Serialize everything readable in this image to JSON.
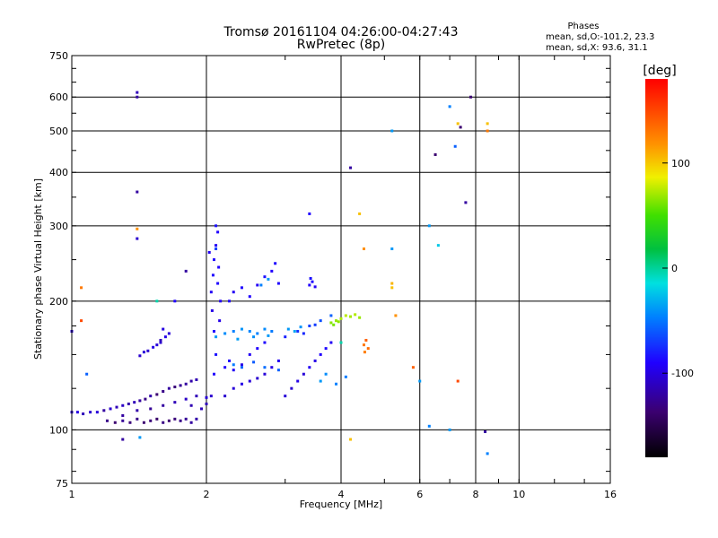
{
  "chart_data": {
    "type": "scatter",
    "title": "Tromsø 20161104 04:26:00-04:27:43",
    "subtitle": "RwPretec (8p)",
    "xlabel": "Frequency [MHz]",
    "ylabel": "Stationary phase Virtual Height [km]",
    "x_scale": "log",
    "y_scale": "log",
    "xlim": [
      1,
      16
    ],
    "ylim": [
      75,
      750
    ],
    "x_ticks": [
      1,
      2,
      4,
      6,
      8,
      10,
      16
    ],
    "x_tick_labels": [
      "1",
      "2",
      "4",
      "6",
      "8",
      "10",
      "16"
    ],
    "y_ticks": [
      75,
      100,
      200,
      300,
      400,
      500,
      600,
      750
    ],
    "y_tick_labels": [
      "75",
      "100",
      "200",
      "300",
      "400",
      "500",
      "600",
      "750"
    ],
    "grid": true,
    "phases_legend": {
      "title": "Phases",
      "line_o": "mean, sd,O:-101.2, 23.3",
      "line_x": "mean, sd,X:  93.6, 31.1"
    },
    "colorbar": {
      "label": "[deg]",
      "ticks": [
        100,
        0,
        -100
      ],
      "tick_labels": [
        "100",
        "0",
        "-100"
      ],
      "range": [
        -180,
        180
      ]
    },
    "points": [
      [
        1.0,
        110,
        -120
      ],
      [
        1.03,
        110,
        -115
      ],
      [
        1.06,
        109,
        -125
      ],
      [
        1.1,
        110,
        -120
      ],
      [
        1.14,
        110,
        -118
      ],
      [
        1.18,
        111,
        -130
      ],
      [
        1.22,
        112,
        -120
      ],
      [
        1.26,
        113,
        -125
      ],
      [
        1.3,
        114,
        -122
      ],
      [
        1.34,
        115,
        -128
      ],
      [
        1.38,
        116,
        -125
      ],
      [
        1.42,
        117,
        -130
      ],
      [
        1.46,
        118,
        -135
      ],
      [
        1.5,
        120,
        -128
      ],
      [
        1.55,
        121,
        -140
      ],
      [
        1.6,
        123,
        -135
      ],
      [
        1.65,
        125,
        -130
      ],
      [
        1.7,
        126,
        -138
      ],
      [
        1.75,
        127,
        -132
      ],
      [
        1.8,
        128,
        -130
      ],
      [
        1.85,
        130,
        -128
      ],
      [
        1.9,
        131,
        -126
      ],
      [
        1.2,
        105,
        -135
      ],
      [
        1.25,
        104,
        -140
      ],
      [
        1.3,
        105,
        -132
      ],
      [
        1.35,
        104,
        -138
      ],
      [
        1.4,
        106,
        -135
      ],
      [
        1.45,
        104,
        -140
      ],
      [
        1.5,
        105,
        -138
      ],
      [
        1.55,
        106,
        -142
      ],
      [
        1.6,
        104,
        -136
      ],
      [
        1.65,
        105,
        -140
      ],
      [
        1.7,
        106,
        -138
      ],
      [
        1.75,
        105,
        -135
      ],
      [
        1.8,
        106,
        -132
      ],
      [
        1.85,
        104,
        -130
      ],
      [
        1.9,
        106,
        -128
      ],
      [
        1.3,
        108,
        -130
      ],
      [
        1.4,
        111,
        -128
      ],
      [
        1.5,
        112,
        -132
      ],
      [
        1.6,
        114,
        -130
      ],
      [
        1.7,
        116,
        -125
      ],
      [
        1.8,
        118,
        -122
      ],
      [
        1.9,
        120,
        -125
      ],
      [
        2.0,
        119,
        -118
      ],
      [
        1.95,
        112,
        -124
      ],
      [
        1.85,
        114,
        -126
      ],
      [
        1.42,
        149,
        -120
      ],
      [
        1.45,
        152,
        -118
      ],
      [
        1.48,
        153,
        -120
      ],
      [
        1.52,
        156,
        -115
      ],
      [
        1.55,
        158,
        -118
      ],
      [
        1.58,
        160,
        -120
      ],
      [
        1.62,
        165,
        -115
      ],
      [
        1.65,
        168,
        -118
      ],
      [
        1.6,
        172,
        -116
      ],
      [
        1.58,
        162,
        -124
      ],
      [
        2.0,
        115,
        -125
      ],
      [
        2.05,
        120,
        -120
      ],
      [
        2.08,
        135,
        -110
      ],
      [
        2.1,
        150,
        -105
      ],
      [
        2.08,
        170,
        -110
      ],
      [
        2.06,
        190,
        -115
      ],
      [
        2.05,
        210,
        -112
      ],
      [
        2.07,
        230,
        -108
      ],
      [
        2.08,
        250,
        -110
      ],
      [
        2.1,
        270,
        -112
      ],
      [
        2.12,
        290,
        -110
      ],
      [
        2.1,
        300,
        -105
      ],
      [
        2.15,
        200,
        -112
      ],
      [
        2.12,
        220,
        -108
      ],
      [
        2.13,
        240,
        -110
      ],
      [
        2.14,
        180,
        -115
      ],
      [
        2.03,
        260,
        -112
      ],
      [
        2.2,
        140,
        -110
      ],
      [
        2.25,
        145,
        -108
      ],
      [
        2.3,
        138,
        -112
      ],
      [
        2.4,
        142,
        -115
      ],
      [
        2.5,
        150,
        -112
      ],
      [
        2.6,
        155,
        -110
      ],
      [
        2.7,
        160,
        -108
      ],
      [
        2.2,
        120,
        -120
      ],
      [
        2.3,
        125,
        -118
      ],
      [
        2.4,
        128,
        -115
      ],
      [
        2.5,
        130,
        -118
      ],
      [
        2.6,
        132,
        -120
      ],
      [
        2.7,
        135,
        -118
      ],
      [
        2.8,
        140,
        -115
      ],
      [
        2.9,
        145,
        -112
      ],
      [
        2.1,
        165,
        -60
      ],
      [
        2.2,
        168,
        -65
      ],
      [
        2.3,
        170,
        -70
      ],
      [
        2.4,
        172,
        -62
      ],
      [
        2.5,
        170,
        -68
      ],
      [
        2.6,
        168,
        -70
      ],
      [
        2.7,
        172,
        -66
      ],
      [
        2.8,
        170,
        -72
      ],
      [
        2.35,
        163,
        -58
      ],
      [
        2.55,
        165,
        -64
      ],
      [
        2.75,
        166,
        -60
      ],
      [
        2.3,
        142,
        -72
      ],
      [
        2.4,
        140,
        -78
      ],
      [
        2.55,
        144,
        -82
      ],
      [
        2.7,
        140,
        -76
      ],
      [
        2.9,
        138,
        -80
      ],
      [
        2.25,
        200,
        -110
      ],
      [
        2.3,
        210,
        -112
      ],
      [
        2.4,
        215,
        -108
      ],
      [
        2.5,
        205,
        -110
      ],
      [
        2.6,
        218,
        -112
      ],
      [
        2.7,
        228,
        -105
      ],
      [
        2.8,
        235,
        -110
      ],
      [
        2.85,
        245,
        -108
      ],
      [
        2.75,
        225,
        -60
      ],
      [
        2.65,
        218,
        -70
      ],
      [
        2.9,
        220,
        -108
      ],
      [
        3.0,
        120,
        -118
      ],
      [
        3.1,
        125,
        -120
      ],
      [
        3.2,
        130,
        -115
      ],
      [
        3.3,
        135,
        -118
      ],
      [
        3.4,
        140,
        -112
      ],
      [
        3.5,
        145,
        -115
      ],
      [
        3.6,
        150,
        -110
      ],
      [
        3.7,
        155,
        -108
      ],
      [
        3.8,
        160,
        -112
      ],
      [
        3.0,
        165,
        -100
      ],
      [
        3.2,
        170,
        -95
      ],
      [
        3.4,
        175,
        -90
      ],
      [
        3.6,
        180,
        -85
      ],
      [
        3.3,
        168,
        -98
      ],
      [
        3.5,
        176,
        -92
      ],
      [
        3.8,
        185,
        -80
      ],
      [
        3.05,
        172,
        -60
      ],
      [
        3.15,
        170,
        -55
      ],
      [
        3.25,
        174,
        -62
      ],
      [
        3.4,
        218,
        -110
      ],
      [
        3.45,
        222,
        -108
      ],
      [
        3.5,
        216,
        -112
      ],
      [
        3.42,
        226,
        -105
      ],
      [
        3.8,
        178,
        50
      ],
      [
        3.9,
        180,
        55
      ],
      [
        4.0,
        182,
        60
      ],
      [
        4.1,
        185,
        65
      ],
      [
        4.2,
        184,
        58
      ],
      [
        4.3,
        186,
        62
      ],
      [
        4.4,
        183,
        55
      ],
      [
        3.85,
        176,
        45
      ],
      [
        3.95,
        179,
        52
      ],
      [
        4.5,
        158,
        130
      ],
      [
        4.55,
        162,
        140
      ],
      [
        4.6,
        155,
        135
      ],
      [
        4.52,
        152,
        128
      ],
      [
        5.2,
        215,
        100
      ],
      [
        5.2,
        220,
        105
      ],
      [
        5.3,
        185,
        120
      ],
      [
        3.6,
        130,
        -60
      ],
      [
        3.7,
        135,
        -65
      ],
      [
        3.9,
        128,
        -70
      ],
      [
        4.1,
        133,
        -72
      ],
      [
        1.05,
        215,
        130
      ],
      [
        1.05,
        180,
        150
      ],
      [
        1.0,
        170,
        -120
      ],
      [
        1.08,
        135,
        -80
      ],
      [
        1.4,
        295,
        120
      ],
      [
        1.4,
        280,
        -120
      ],
      [
        1.4,
        360,
        -130
      ],
      [
        1.4,
        600,
        -130
      ],
      [
        1.4,
        615,
        -125
      ],
      [
        1.42,
        96,
        -60
      ],
      [
        1.3,
        95,
        -130
      ],
      [
        1.55,
        200,
        -20
      ],
      [
        1.7,
        200,
        -110
      ],
      [
        1.8,
        235,
        -130
      ],
      [
        2.1,
        265,
        -90
      ],
      [
        3.4,
        320,
        -110
      ],
      [
        4.2,
        410,
        -130
      ],
      [
        4.4,
        320,
        100
      ],
      [
        4.5,
        265,
        120
      ],
      [
        4.2,
        95,
        100
      ],
      [
        5.2,
        500,
        -60
      ],
      [
        5.2,
        265,
        -60
      ],
      [
        5.8,
        140,
        140
      ],
      [
        6.0,
        130,
        -60
      ],
      [
        6.3,
        300,
        -60
      ],
      [
        6.5,
        440,
        -140
      ],
      [
        6.6,
        270,
        -40
      ],
      [
        7.0,
        570,
        -70
      ],
      [
        7.2,
        460,
        -80
      ],
      [
        7.3,
        520,
        100
      ],
      [
        7.3,
        130,
        150
      ],
      [
        7.6,
        340,
        -130
      ],
      [
        7.0,
        100,
        -60
      ],
      [
        7.4,
        510,
        -140
      ],
      [
        7.8,
        600,
        -140
      ],
      [
        8.5,
        520,
        100
      ],
      [
        8.5,
        500,
        130
      ],
      [
        8.5,
        88,
        -70
      ],
      [
        8.4,
        99,
        -130
      ],
      [
        6.3,
        102,
        -70
      ],
      [
        4.0,
        160,
        -20
      ]
    ]
  }
}
